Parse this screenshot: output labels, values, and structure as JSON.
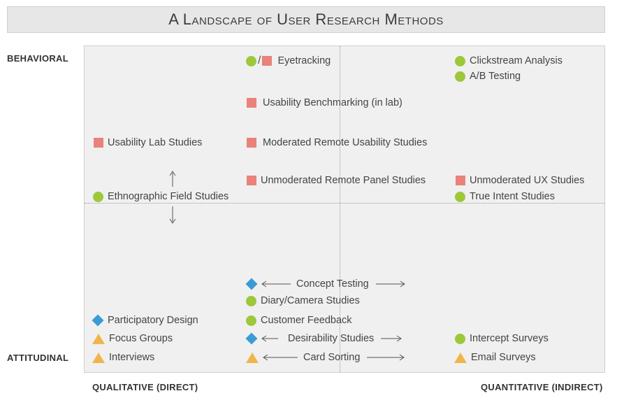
{
  "title": "A Landscape of User Research Methods",
  "axes": {
    "top": "BEHAVIORAL",
    "bottom": "ATTITUDINAL",
    "left": "QUALITATIVE (DIRECT)",
    "right": "QUANTITATIVE (INDIRECT)"
  },
  "legend_colors": {
    "square": "#e8827a",
    "circle": "#9cc83a",
    "diamond": "#3a9bd5",
    "triangle": "#f2b44a"
  },
  "methods": {
    "eyetracking": "Eyetracking",
    "clickstream": "Clickstream Analysis",
    "ab_testing": "A/B Testing",
    "usability_benchmarking": "Usability Benchmarking (in lab)",
    "usability_lab": "Usability Lab Studies",
    "moderated_remote": "Moderated Remote Usability Studies",
    "unmoderated_panel": "Unmoderated Remote Panel Studies",
    "unmoderated_ux": "Unmoderated UX Studies",
    "ethnographic": "Ethnographic Field Studies",
    "true_intent": "True Intent Studies",
    "concept_testing": "Concept Testing",
    "diary_camera": "Diary/Camera Studies",
    "participatory_design": "Participatory Design",
    "customer_feedback": "Customer Feedback",
    "focus_groups": "Focus Groups",
    "desirability": "Desirability Studies",
    "intercept_surveys": "Intercept Surveys",
    "interviews": "Interviews",
    "card_sorting": "Card Sorting",
    "email_surveys": "Email Surveys"
  },
  "eyetracking_separator": "/",
  "icons": {
    "square": "square-icon",
    "circle": "circle-icon",
    "diamond": "diamond-icon",
    "triangle": "triangle-icon"
  }
}
